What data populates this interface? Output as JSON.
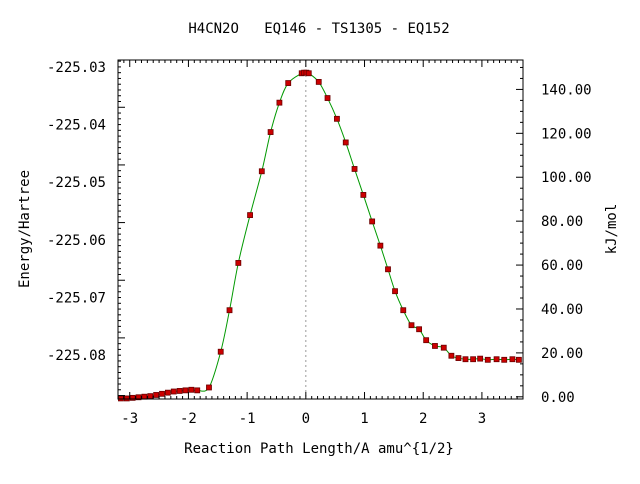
{
  "chart_data": {
    "type": "scatter",
    "title": "H4CN2O   EQ146 - TS1305 - EQ152",
    "xlabel": "Reaction Path Length/A amu^{1/2}",
    "ylabel_left": "Energy/Hartree",
    "ylabel_right": "kJ/mol",
    "xlim": [
      -3.2,
      3.7
    ],
    "ylim_left": [
      -225.0876,
      -225.0288
    ],
    "ylim_right": [
      -1.0,
      153.4
    ],
    "x_ticks": [
      "-3",
      "-2",
      "-1",
      "0",
      "1",
      "2",
      "3"
    ],
    "left_ticks": [
      "-225.03",
      "-225.04",
      "-225.05",
      "-225.06",
      "-225.07",
      "-225.08"
    ],
    "right_ticks": [
      "0.00",
      "20.00",
      "40.00",
      "60.00",
      "80.00",
      "100.00",
      "120.00",
      "140.00"
    ],
    "dashed_x": 0,
    "colors": {
      "point": "#cc0000",
      "point_edge": "#6b0000",
      "curve": "#009900",
      "frame": "#000000",
      "dashed": "#999999"
    },
    "series": [
      {
        "x": [
          -3.15,
          -3.05,
          -2.95,
          -2.85,
          -2.75,
          -2.65,
          -2.55,
          -2.45,
          -2.35,
          -2.25,
          -2.15,
          -2.05,
          -1.95,
          -1.85,
          -1.65,
          -1.45,
          -1.3,
          -1.15,
          -0.95,
          -0.75,
          -0.6,
          -0.45,
          -0.3,
          -0.07,
          -0.03,
          0.01,
          0.05,
          0.22,
          0.37,
          0.53,
          0.68,
          0.83,
          0.98,
          1.13,
          1.27,
          1.4,
          1.52,
          1.66,
          1.8,
          1.93,
          2.05,
          2.2,
          2.35,
          2.48,
          2.6,
          2.72,
          2.85,
          2.97,
          3.1,
          3.25,
          3.38,
          3.52,
          3.63
        ],
        "y": [
          -225.0875,
          -225.0875,
          -225.0874,
          -225.0873,
          -225.0872,
          -225.0871,
          -225.0869,
          -225.0867,
          -225.0865,
          -225.0863,
          -225.0862,
          -225.0861,
          -225.086,
          -225.0861,
          -225.0856,
          -225.0794,
          -225.0722,
          -225.064,
          -225.0557,
          -225.0481,
          -225.0413,
          -225.0362,
          -225.0328,
          -225.0311,
          -225.031,
          -225.031,
          -225.0311,
          -225.0326,
          -225.0354,
          -225.039,
          -225.0431,
          -225.0477,
          -225.0522,
          -225.0568,
          -225.061,
          -225.0651,
          -225.0689,
          -225.0722,
          -225.0748,
          -225.0755,
          -225.0774,
          -225.0784,
          -225.0787,
          -225.0801,
          -225.0805,
          -225.0807,
          -225.0807,
          -225.0806,
          -225.0808,
          -225.0807,
          -225.0808,
          -225.0807,
          -225.0808
        ]
      }
    ]
  }
}
